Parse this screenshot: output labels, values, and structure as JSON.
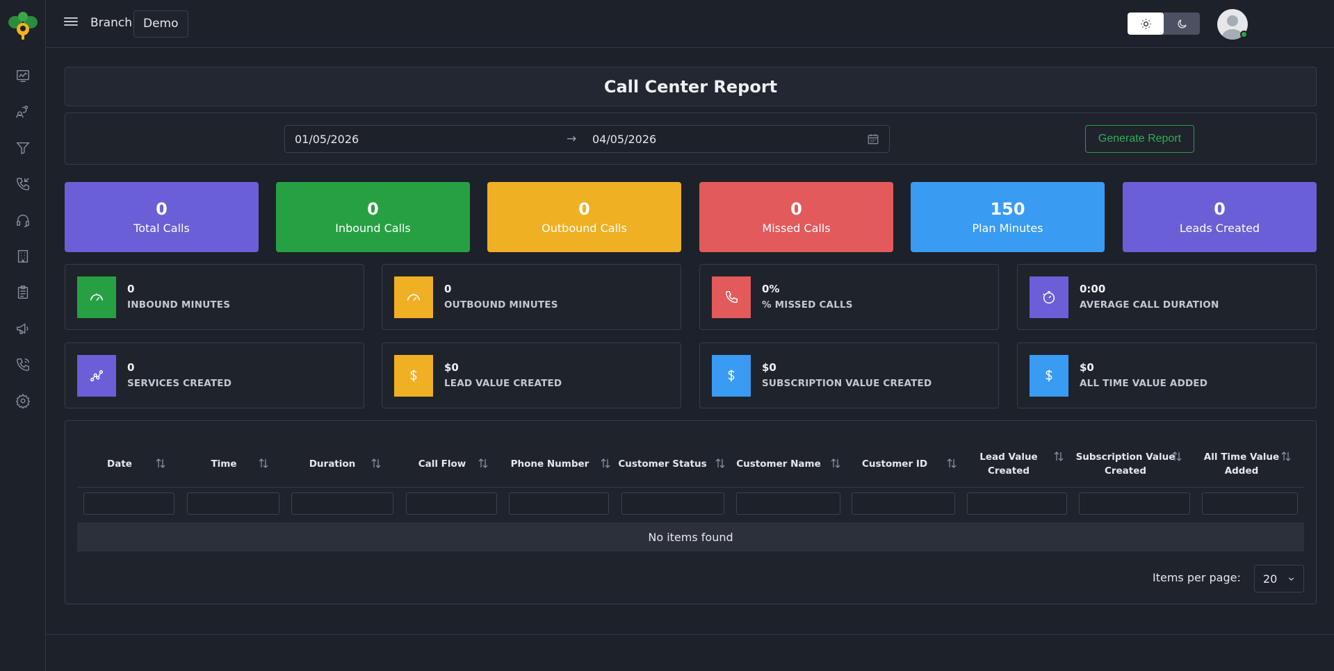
{
  "header": {
    "branch_label": "Branch",
    "branch_value": "Demo",
    "theme": {
      "light_icon": "sun-icon",
      "dark_icon": "moon-icon",
      "active": "light"
    },
    "avatar_status_color": "#2ea34a"
  },
  "sidebar": {
    "logo": "logo-icon",
    "items": [
      {
        "name": "dashboard-icon"
      },
      {
        "name": "user-routes-icon"
      },
      {
        "name": "funnel-icon"
      },
      {
        "name": "phone-incoming-icon"
      },
      {
        "name": "headset-icon"
      },
      {
        "name": "building-icon"
      },
      {
        "name": "clipboard-icon"
      },
      {
        "name": "megaphone-icon"
      },
      {
        "name": "phone-call-icon"
      },
      {
        "name": "settings-icon"
      }
    ]
  },
  "page": {
    "title": "Call Center Report"
  },
  "filter": {
    "start_date": "01/05/2026",
    "arrow": "→",
    "end_date": "04/05/2026",
    "generate_label": "Generate Report"
  },
  "stats": [
    {
      "value": "0",
      "label": "Total Calls",
      "color": "#6a5fd6"
    },
    {
      "value": "0",
      "label": "Inbound Calls",
      "color": "#27a043"
    },
    {
      "value": "0",
      "label": "Outbound Calls",
      "color": "#f0b024"
    },
    {
      "value": "0",
      "label": "Missed Calls",
      "color": "#e35a5b"
    },
    {
      "value": "150",
      "label": "Plan Minutes",
      "color": "#3a9bf3"
    },
    {
      "value": "0",
      "label": "Leads Created",
      "color": "#6a5fd6"
    }
  ],
  "metrics": [
    {
      "value": "0",
      "label": "INBOUND MINUTES",
      "icon": "speedometer-icon",
      "color": "#27a043"
    },
    {
      "value": "0",
      "label": "OUTBOUND MINUTES",
      "icon": "speedometer-icon",
      "color": "#f0b024"
    },
    {
      "value": "0%",
      "label": "% MISSED CALLS",
      "icon": "phone-icon",
      "color": "#e35a5b"
    },
    {
      "value": "0:00",
      "label": "AVERAGE CALL DURATION",
      "icon": "stopwatch-icon",
      "color": "#6a5fd6"
    },
    {
      "value": "0",
      "label": "SERVICES CREATED",
      "icon": "trend-icon",
      "color": "#6a5fd6"
    },
    {
      "value": "$0",
      "label": "LEAD VALUE CREATED",
      "icon": "dollar-icon",
      "color": "#f0b024"
    },
    {
      "value": "$0",
      "label": "SUBSCRIPTION VALUE CREATED",
      "icon": "dollar-icon",
      "color": "#3a9bf3"
    },
    {
      "value": "$0",
      "label": "ALL TIME VALUE ADDED",
      "icon": "dollar-icon",
      "color": "#3a9bf3"
    }
  ],
  "table": {
    "columns": [
      {
        "line1": "Date",
        "line2": ""
      },
      {
        "line1": "Time",
        "line2": ""
      },
      {
        "line1": "Duration",
        "line2": ""
      },
      {
        "line1": "Call Flow",
        "line2": ""
      },
      {
        "line1": "Phone Number",
        "line2": ""
      },
      {
        "line1": "Customer Status",
        "line2": ""
      },
      {
        "line1": "Customer Name",
        "line2": ""
      },
      {
        "line1": "Customer ID",
        "line2": ""
      },
      {
        "line1": "Lead Value",
        "line2": "Created"
      },
      {
        "line1": "Subscription Value",
        "line2": "Created"
      },
      {
        "line1": "All Time Value",
        "line2": "Added"
      }
    ],
    "empty_text": "No items found",
    "items_per_page_label": "Items per page:",
    "items_per_page_value": "20"
  }
}
